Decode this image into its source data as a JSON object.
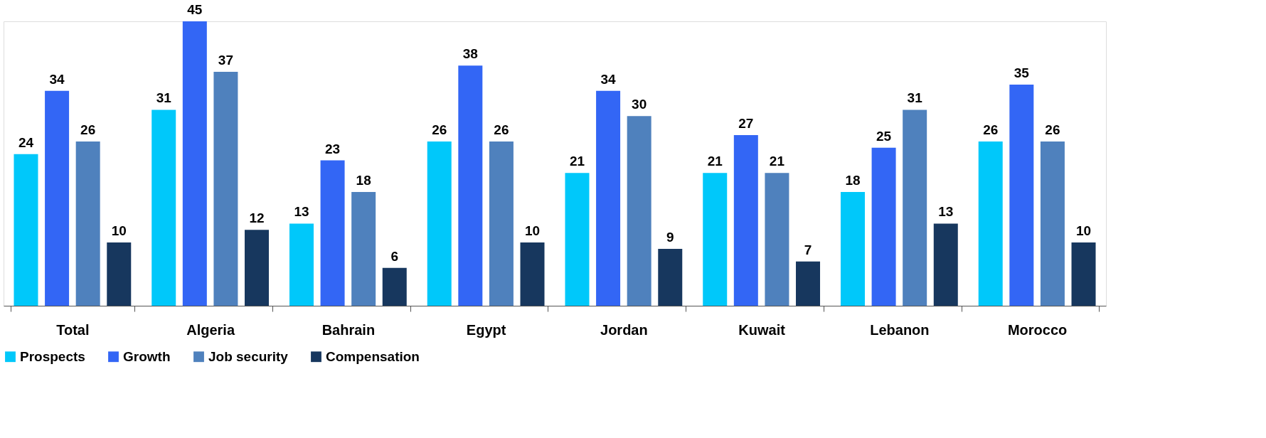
{
  "chart_data": {
    "type": "bar",
    "categories": [
      "Total",
      "Algeria",
      "Bahrain",
      "Egypt",
      "Jordan",
      "Kuwait",
      "Lebanon",
      "Morocco"
    ],
    "series": [
      {
        "name": "Prospects",
        "color": "#00c8fa",
        "values": [
          24,
          31,
          13,
          26,
          21,
          21,
          18,
          26
        ]
      },
      {
        "name": "Growth",
        "color": "#3366f5",
        "values": [
          34,
          45,
          23,
          38,
          34,
          27,
          25,
          35
        ]
      },
      {
        "name": "Job security",
        "color": "#4f81bd",
        "values": [
          26,
          37,
          18,
          26,
          30,
          21,
          31,
          26
        ]
      },
      {
        "name": "Compensation",
        "color": "#17375e",
        "values": [
          10,
          12,
          6,
          10,
          9,
          7,
          13,
          10
        ]
      }
    ],
    "data_labels": true,
    "legend": "bottom",
    "grid": false
  }
}
